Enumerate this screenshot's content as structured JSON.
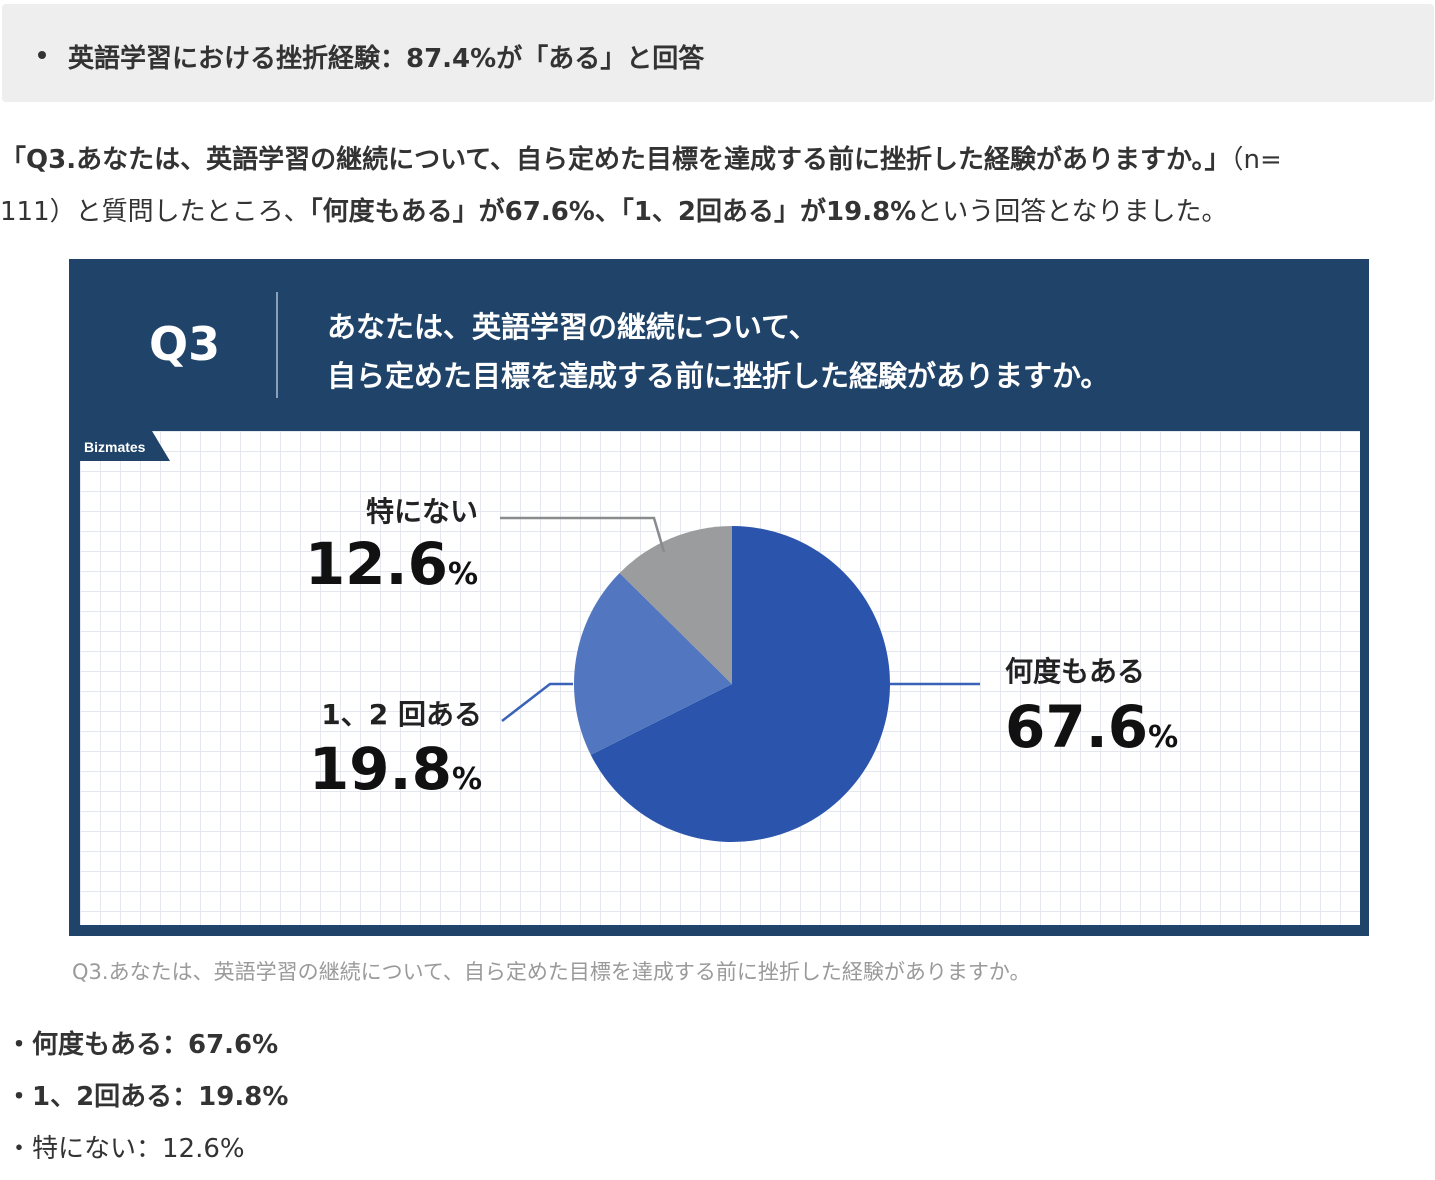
{
  "summary": {
    "text": "英語学習における挫折経験：87.4%が「ある」と回答"
  },
  "intro": {
    "line1_bold": "「Q3.あなたは、英語学習の継続について、自ら定めた目標を達成する前に挫折した経験がありますか。」",
    "line1_rest": "（n=",
    "line2_a": "111）と質問したところ、",
    "line2_b_bold": "「何度もある」が67.6%、「1、2回ある」が19.8%",
    "line2_c": "という回答となりました。"
  },
  "figure": {
    "q_label": "Q3",
    "q_line1": "あなたは、英語学習の継続について、",
    "q_line2": "自ら定めた目標を達成する前に挫折した経験がありますか。",
    "logo_text": "Bizmates"
  },
  "chart_data": {
    "type": "pie",
    "slices": [
      {
        "label": "何度もある",
        "value": 67.6,
        "display": "67.6",
        "unit": "%",
        "color": "#2b55ad"
      },
      {
        "label": "1、2 回ある",
        "value": 19.8,
        "display": "19.8",
        "unit": "%",
        "color": "#5276bf"
      },
      {
        "label": "特にない",
        "value": 12.6,
        "display": "12.6",
        "unit": "%",
        "color": "#9b9c9e"
      }
    ]
  },
  "caption": "Q3.あなたは、英語学習の継続について、自ら定めた目標を達成する前に挫折した経験がありますか。",
  "list": [
    {
      "text": "・何度もある：67.6%",
      "bold": true
    },
    {
      "text": "・1、2回ある：19.8%",
      "bold": true
    },
    {
      "text": "・特にない：12.6%",
      "bold": false
    }
  ]
}
